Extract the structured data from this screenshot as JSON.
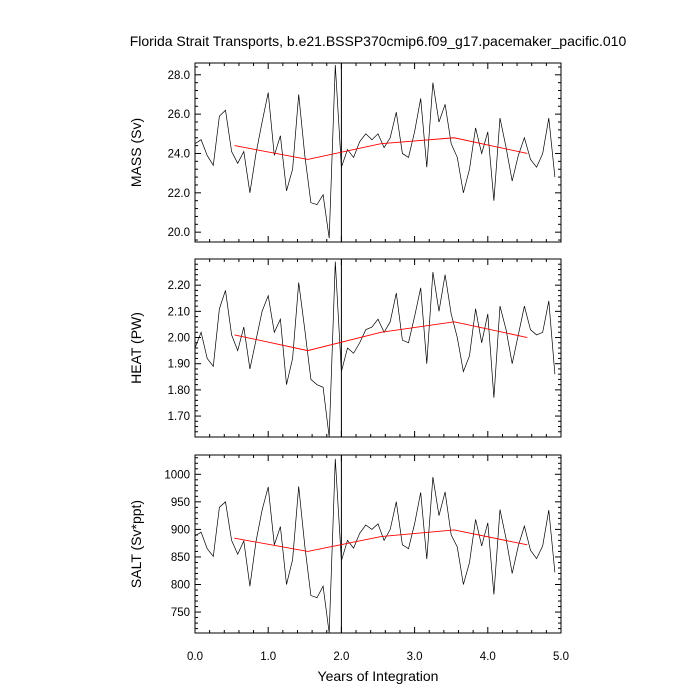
{
  "chart_data": {
    "title": "Florida Strait Transports, b.e21.BSSP370cmip6.f09_g17.pacemaker_pacific.010",
    "xlabel": "Years of Integration",
    "xlim": [
      0,
      5
    ],
    "x_ticks": [
      0,
      1,
      2,
      3,
      4,
      5
    ],
    "x_tick_labels": [
      "0.0",
      "1.0",
      "2.0",
      "3.0",
      "4.0",
      "5.0"
    ],
    "x_step": 0.08333,
    "vline_x": 2.0,
    "colors": {
      "monthly": "#000000",
      "annual": "#ff0000",
      "vline": "#000000"
    },
    "panels": [
      {
        "id": "mass",
        "type": "line",
        "ylabel": "MASS (Sv)",
        "ylim": [
          19.5,
          28.6
        ],
        "y_ticks": [
          20,
          22,
          24,
          26,
          28
        ],
        "y_tick_labels": [
          "20.0",
          "22.0",
          "24.0",
          "26.0",
          "28.0"
        ],
        "series": [
          {
            "values": [
              24.5,
              24.7,
              23.9,
              23.4,
              25.9,
              26.2,
              24.1,
              23.5,
              24.1,
              22.0,
              24.0,
              25.6,
              27.1,
              23.9,
              24.9,
              22.1,
              23.2,
              27.0,
              23.9,
              21.5,
              21.4,
              21.9,
              19.7,
              28.5,
              23.3,
              24.2,
              23.8,
              24.6,
              25.0,
              24.7,
              25.0,
              24.3,
              24.8,
              26.1,
              24.0,
              23.8,
              25.1,
              26.8,
              23.3,
              27.6,
              25.6,
              26.5,
              24.5,
              23.8,
              22.0,
              23.2,
              25.3,
              24.0,
              25.1,
              21.6,
              25.8,
              24.3,
              22.6,
              23.9,
              24.8,
              23.7,
              23.3,
              24.0,
              25.8,
              22.8
            ]
          },
          {
            "x": [
              0.54,
              1.54,
              2.54,
              3.54,
              4.54
            ],
            "values": [
              24.4,
              23.7,
              24.5,
              24.8,
              24.0
            ]
          }
        ]
      },
      {
        "id": "heat",
        "type": "line",
        "ylabel": "HEAT (PW)",
        "ylim": [
          1.62,
          2.3
        ],
        "y_ticks": [
          1.7,
          1.8,
          1.9,
          2.0,
          2.1,
          2.2
        ],
        "y_tick_labels": [
          "1.70",
          "1.80",
          "1.90",
          "2.00",
          "2.10",
          "2.20"
        ],
        "series": [
          {
            "values": [
              1.96,
              2.02,
              1.92,
              1.89,
              2.11,
              2.18,
              2.01,
              1.95,
              2.04,
              1.88,
              1.99,
              2.1,
              2.16,
              2.02,
              2.07,
              1.82,
              1.92,
              2.21,
              2.03,
              1.84,
              1.82,
              1.81,
              1.62,
              2.29,
              1.87,
              1.96,
              1.94,
              1.98,
              2.03,
              2.04,
              2.07,
              2.02,
              2.06,
              2.17,
              1.99,
              1.98,
              2.08,
              2.19,
              1.9,
              2.25,
              2.1,
              2.24,
              2.09,
              2.0,
              1.87,
              1.93,
              2.11,
              1.98,
              2.09,
              1.77,
              2.12,
              2.03,
              1.9,
              2.01,
              2.12,
              2.03,
              2.01,
              2.02,
              2.14,
              1.86
            ]
          },
          {
            "x": [
              0.54,
              1.54,
              2.54,
              3.54,
              4.54
            ],
            "values": [
              2.01,
              1.95,
              2.02,
              2.06,
              2.0
            ]
          }
        ]
      },
      {
        "id": "salt",
        "type": "line",
        "ylabel": "SALT (Sv*ppt)",
        "ylim": [
          712,
          1035
        ],
        "y_ticks": [
          750,
          800,
          850,
          900,
          950,
          1000
        ],
        "y_tick_labels": [
          "750",
          "800",
          "850",
          "900",
          "950",
          "1000"
        ],
        "series": [
          {
            "values": [
              888,
              895,
              865,
              851,
              940,
              950,
              880,
              855,
              879,
              797,
              878,
              935,
              977,
              872,
              905,
              800,
              845,
              978,
              870,
              780,
              776,
              797,
              712,
              1028,
              843,
              880,
              866,
              893,
              908,
              900,
              910,
              880,
              900,
              950,
              872,
              865,
              910,
              967,
              846,
              995,
              925,
              968,
              890,
              868,
              800,
              840,
              918,
              870,
              912,
              782,
              936,
              883,
              820,
              870,
              906,
              862,
              847,
              870,
              935,
              822
            ]
          },
          {
            "x": [
              0.54,
              1.54,
              2.54,
              3.54,
              4.54
            ],
            "values": [
              884,
              860,
              887,
              899,
              872
            ]
          }
        ]
      }
    ]
  }
}
